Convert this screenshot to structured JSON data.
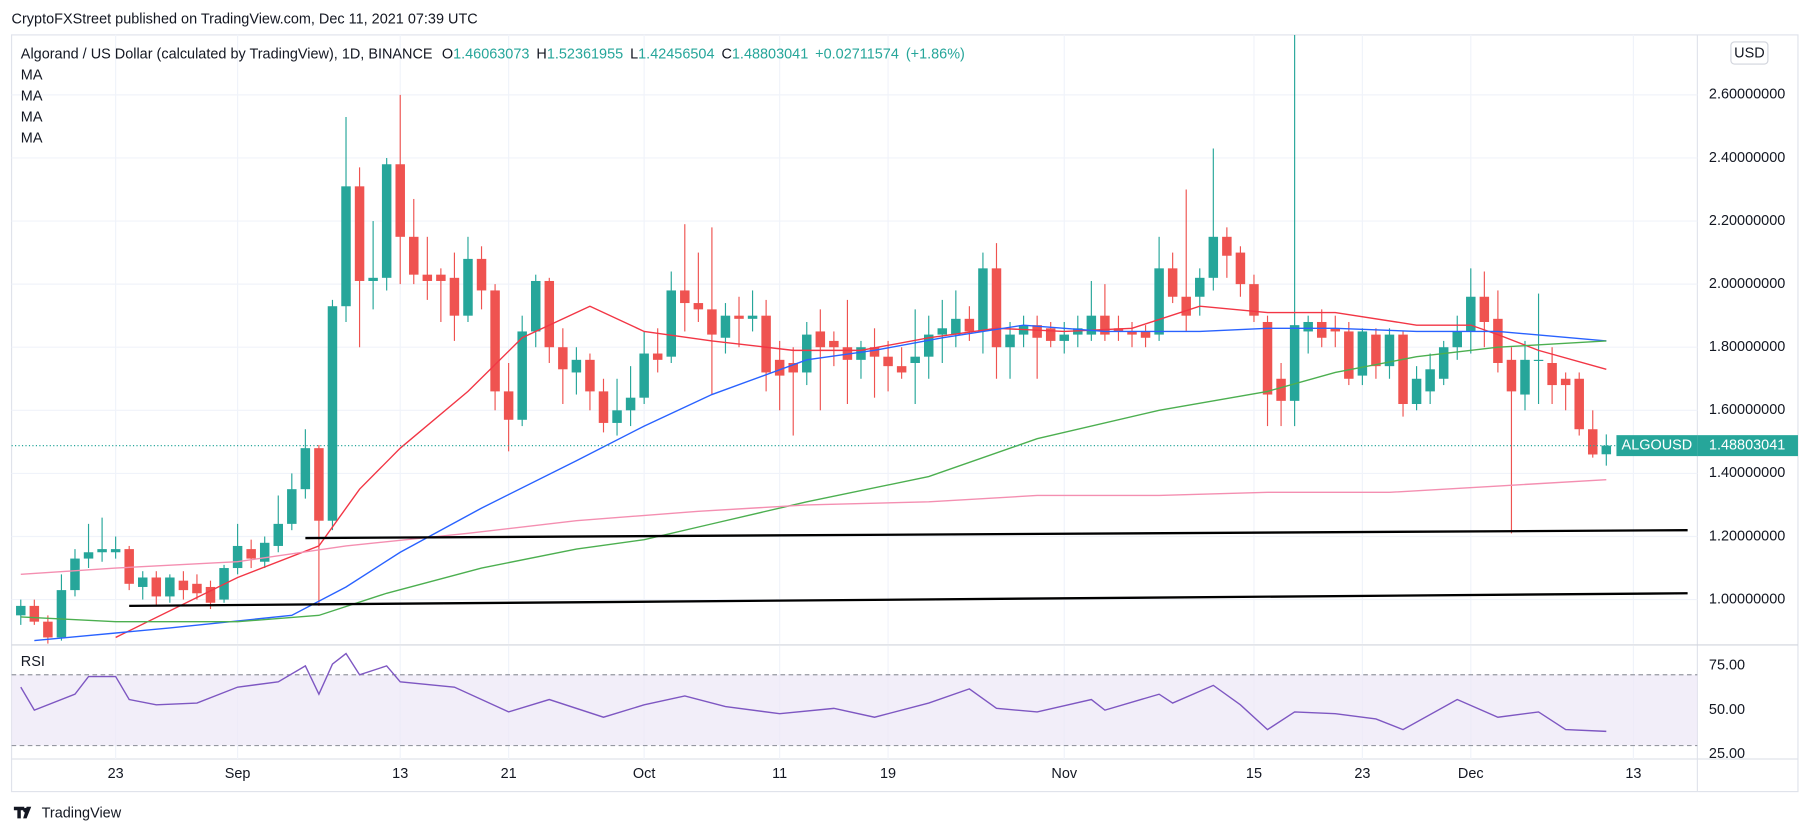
{
  "header": {
    "published": "CryptoFXStreet published on TradingView.com, Dec 11, 2021 07:39 UTC",
    "brand": "TradingView"
  },
  "chart_data": [
    {
      "type": "candlestick",
      "title": "Algorand / US Dollar (calculated by TradingView), 1D, BINANCE",
      "ohlc_labels": [
        "O",
        "H",
        "L",
        "C"
      ],
      "change": "+0.02711574",
      "change_pct": "(+1.86%)",
      "currency": "USD",
      "price_label": "ALGOUSD",
      "up_color": "#26a69a",
      "down_color": "#ef5350",
      "candles": [
        [
          0.95,
          1.0,
          0.92,
          0.98
        ],
        [
          0.98,
          1.0,
          0.92,
          0.93
        ],
        [
          0.93,
          0.95,
          0.86,
          0.88
        ],
        [
          0.88,
          1.08,
          0.87,
          1.03
        ],
        [
          1.03,
          1.16,
          1.01,
          1.13
        ],
        [
          1.13,
          1.24,
          1.1,
          1.15
        ],
        [
          1.15,
          1.26,
          1.12,
          1.16
        ],
        [
          1.15,
          1.2,
          1.13,
          1.16
        ],
        [
          1.16,
          1.17,
          1.03,
          1.05
        ],
        [
          1.04,
          1.09,
          1.0,
          1.07
        ],
        [
          1.07,
          1.09,
          0.98,
          1.01
        ],
        [
          1.01,
          1.08,
          0.99,
          1.07
        ],
        [
          1.06,
          1.09,
          1.0,
          1.03
        ],
        [
          1.05,
          1.08,
          1.0,
          1.02
        ],
        [
          1.04,
          1.06,
          0.97,
          0.99
        ],
        [
          1.0,
          1.11,
          0.99,
          1.1
        ],
        [
          1.1,
          1.24,
          1.08,
          1.17
        ],
        [
          1.16,
          1.19,
          1.1,
          1.13
        ],
        [
          1.12,
          1.2,
          1.1,
          1.18
        ],
        [
          1.17,
          1.33,
          1.15,
          1.24
        ],
        [
          1.24,
          1.4,
          1.22,
          1.35
        ],
        [
          1.35,
          1.54,
          1.32,
          1.48
        ],
        [
          1.48,
          1.49,
          0.98,
          1.25
        ],
        [
          1.25,
          1.95,
          1.22,
          1.93
        ],
        [
          1.93,
          2.53,
          1.88,
          2.31
        ],
        [
          2.31,
          2.37,
          1.8,
          2.01
        ],
        [
          2.01,
          2.2,
          1.92,
          2.02
        ],
        [
          2.02,
          2.4,
          1.98,
          2.38
        ],
        [
          2.38,
          2.6,
          2.0,
          2.15
        ],
        [
          2.15,
          2.27,
          2.0,
          2.03
        ],
        [
          2.03,
          2.15,
          1.95,
          2.01
        ],
        [
          2.03,
          2.05,
          1.88,
          2.01
        ],
        [
          2.02,
          2.1,
          1.82,
          1.9
        ],
        [
          1.9,
          2.15,
          1.88,
          2.08
        ],
        [
          2.08,
          2.12,
          1.92,
          1.98
        ],
        [
          1.98,
          2.0,
          1.6,
          1.66
        ],
        [
          1.66,
          1.75,
          1.47,
          1.57
        ],
        [
          1.57,
          1.9,
          1.55,
          1.85
        ],
        [
          1.85,
          2.03,
          1.8,
          2.01
        ],
        [
          2.01,
          2.02,
          1.75,
          1.8
        ],
        [
          1.8,
          1.86,
          1.62,
          1.73
        ],
        [
          1.72,
          1.8,
          1.65,
          1.76
        ],
        [
          1.76,
          1.78,
          1.6,
          1.66
        ],
        [
          1.66,
          1.7,
          1.53,
          1.56
        ],
        [
          1.56,
          1.7,
          1.52,
          1.6
        ],
        [
          1.6,
          1.74,
          1.55,
          1.64
        ],
        [
          1.64,
          1.85,
          1.62,
          1.78
        ],
        [
          1.78,
          1.86,
          1.72,
          1.76
        ],
        [
          1.77,
          2.04,
          1.75,
          1.98
        ],
        [
          1.98,
          2.19,
          1.85,
          1.94
        ],
        [
          1.94,
          2.1,
          1.88,
          1.92
        ],
        [
          1.92,
          2.18,
          1.65,
          1.84
        ],
        [
          1.83,
          1.94,
          1.78,
          1.9
        ],
        [
          1.9,
          1.96,
          1.8,
          1.89
        ],
        [
          1.89,
          1.98,
          1.85,
          1.9
        ],
        [
          1.9,
          1.95,
          1.66,
          1.72
        ],
        [
          1.76,
          1.82,
          1.6,
          1.71
        ],
        [
          1.75,
          1.8,
          1.52,
          1.72
        ],
        [
          1.72,
          1.88,
          1.68,
          1.84
        ],
        [
          1.85,
          1.92,
          1.6,
          1.8
        ],
        [
          1.82,
          1.85,
          1.74,
          1.8
        ],
        [
          1.8,
          1.95,
          1.62,
          1.76
        ],
        [
          1.76,
          1.82,
          1.7,
          1.8
        ],
        [
          1.8,
          1.86,
          1.64,
          1.77
        ],
        [
          1.77,
          1.82,
          1.66,
          1.74
        ],
        [
          1.74,
          1.8,
          1.7,
          1.72
        ],
        [
          1.75,
          1.92,
          1.62,
          1.77
        ],
        [
          1.77,
          1.9,
          1.7,
          1.84
        ],
        [
          1.84,
          1.95,
          1.75,
          1.86
        ],
        [
          1.84,
          1.98,
          1.8,
          1.89
        ],
        [
          1.89,
          1.93,
          1.82,
          1.85
        ],
        [
          1.85,
          2.1,
          1.78,
          2.05
        ],
        [
          2.05,
          2.13,
          1.7,
          1.8
        ],
        [
          1.8,
          1.88,
          1.7,
          1.84
        ],
        [
          1.84,
          1.9,
          1.8,
          1.87
        ],
        [
          1.87,
          1.9,
          1.7,
          1.83
        ],
        [
          1.86,
          1.88,
          1.8,
          1.82
        ],
        [
          1.82,
          1.88,
          1.78,
          1.84
        ],
        [
          1.84,
          1.9,
          1.8,
          1.86
        ],
        [
          1.84,
          2.01,
          1.82,
          1.9
        ],
        [
          1.9,
          2.0,
          1.82,
          1.84
        ],
        [
          1.86,
          1.9,
          1.82,
          1.85
        ],
        [
          1.85,
          1.88,
          1.8,
          1.84
        ],
        [
          1.85,
          1.87,
          1.8,
          1.83
        ],
        [
          1.84,
          2.15,
          1.82,
          2.05
        ],
        [
          2.05,
          2.1,
          1.94,
          1.96
        ],
        [
          1.96,
          2.3,
          1.85,
          1.9
        ],
        [
          1.96,
          2.05,
          1.9,
          2.02
        ],
        [
          2.02,
          2.43,
          1.98,
          2.15
        ],
        [
          2.15,
          2.18,
          2.02,
          2.09
        ],
        [
          2.1,
          2.12,
          1.96,
          2.0
        ],
        [
          2.0,
          2.03,
          1.88,
          1.9
        ],
        [
          1.88,
          1.9,
          1.55,
          1.65
        ],
        [
          1.7,
          1.75,
          1.55,
          1.63
        ],
        [
          1.63,
          2.79,
          1.55,
          1.87
        ],
        [
          1.85,
          1.9,
          1.78,
          1.88
        ],
        [
          1.88,
          1.92,
          1.8,
          1.83
        ],
        [
          1.86,
          1.9,
          1.8,
          1.85
        ],
        [
          1.85,
          1.88,
          1.68,
          1.7
        ],
        [
          1.71,
          1.86,
          1.68,
          1.85
        ],
        [
          1.84,
          1.86,
          1.7,
          1.74
        ],
        [
          1.74,
          1.86,
          1.7,
          1.84
        ],
        [
          1.84,
          1.85,
          1.58,
          1.62
        ],
        [
          1.62,
          1.74,
          1.6,
          1.7
        ],
        [
          1.66,
          1.78,
          1.62,
          1.73
        ],
        [
          1.7,
          1.82,
          1.68,
          1.8
        ],
        [
          1.8,
          1.9,
          1.76,
          1.85
        ],
        [
          1.85,
          2.05,
          1.78,
          1.96
        ],
        [
          1.96,
          2.04,
          1.8,
          1.88
        ],
        [
          1.89,
          1.98,
          1.72,
          1.75
        ],
        [
          1.76,
          1.8,
          1.21,
          1.66
        ],
        [
          1.65,
          1.82,
          1.6,
          1.76
        ],
        [
          1.76,
          1.97,
          1.62,
          1.76
        ],
        [
          1.75,
          1.8,
          1.62,
          1.68
        ],
        [
          1.7,
          1.72,
          1.6,
          1.68
        ],
        [
          1.7,
          1.72,
          1.52,
          1.54
        ],
        [
          1.54,
          1.6,
          1.45,
          1.46
        ],
        [
          1.46063073,
          1.52361955,
          1.42456504,
          1.48803041
        ]
      ],
      "moving_averages": [
        {
          "name": "MA",
          "color": "#f23645",
          "x": [
            7,
            16,
            22,
            25,
            28,
            33,
            37,
            42,
            46,
            51,
            57,
            62,
            67,
            72,
            77,
            82,
            87,
            92,
            97,
            103,
            107,
            109,
            112,
            117
          ],
          "values": [
            0.88,
            1.07,
            1.17,
            1.35,
            1.48,
            1.66,
            1.83,
            1.93,
            1.85,
            1.82,
            1.79,
            1.79,
            1.83,
            1.86,
            1.85,
            1.86,
            1.93,
            1.91,
            1.91,
            1.87,
            1.87,
            1.84,
            1.79,
            1.73
          ]
        },
        {
          "name": "MA",
          "color": "#2962ff",
          "x": [
            1,
            11,
            20,
            24,
            28,
            34,
            41,
            46,
            51,
            58,
            63,
            68,
            74,
            80,
            87,
            92,
            97,
            103,
            109,
            117
          ],
          "values": [
            0.87,
            0.91,
            0.95,
            1.04,
            1.15,
            1.29,
            1.44,
            1.55,
            1.65,
            1.76,
            1.79,
            1.83,
            1.87,
            1.85,
            1.85,
            1.86,
            1.86,
            1.85,
            1.85,
            1.82
          ]
        },
        {
          "name": "MA",
          "color": "#4caf50",
          "x": [
            0,
            7,
            16,
            22,
            27,
            34,
            41,
            46,
            51,
            58,
            67,
            75,
            84,
            92,
            97,
            103,
            109,
            117
          ],
          "values": [
            0.945,
            0.93,
            0.93,
            0.95,
            1.02,
            1.1,
            1.16,
            1.19,
            1.24,
            1.31,
            1.39,
            1.51,
            1.6,
            1.66,
            1.72,
            1.77,
            1.8,
            1.82
          ]
        },
        {
          "name": "MA",
          "color": "#f48fb1",
          "x": [
            0,
            7,
            16,
            24,
            33,
            41,
            50,
            58,
            67,
            75,
            84,
            92,
            101,
            109,
            117
          ],
          "values": [
            1.08,
            1.1,
            1.12,
            1.17,
            1.21,
            1.25,
            1.28,
            1.3,
            1.31,
            1.33,
            1.33,
            1.34,
            1.34,
            1.36,
            1.38
          ]
        }
      ],
      "trendlines": [
        {
          "color": "#000000",
          "x": [
            8,
            123
          ],
          "values": [
            0.98,
            1.02
          ]
        },
        {
          "color": "#000000",
          "x": [
            21,
            123
          ],
          "values": [
            1.195,
            1.22
          ]
        }
      ],
      "xlim": [
        -0.68,
        123.72
      ],
      "xticks": [
        {
          "value": 7,
          "label": "23"
        },
        {
          "value": 16,
          "label": "Sep"
        },
        {
          "value": 28,
          "label": "13"
        },
        {
          "value": 36,
          "label": "21"
        },
        {
          "value": 46,
          "label": "Oct"
        },
        {
          "value": 56,
          "label": "11"
        },
        {
          "value": 64,
          "label": "19"
        },
        {
          "value": 77,
          "label": "Nov"
        },
        {
          "value": 91,
          "label": "15"
        },
        {
          "value": 99,
          "label": "23"
        },
        {
          "value": 107,
          "label": "Dec"
        },
        {
          "value": 119,
          "label": "13"
        }
      ],
      "ylim": [
        0.86,
        2.79
      ],
      "yticks": [
        {
          "value": 1.0,
          "label": "1.00000000"
        },
        {
          "value": 1.2,
          "label": "1.20000000"
        },
        {
          "value": 1.4,
          "label": "1.40000000"
        },
        {
          "value": 1.6,
          "label": "1.60000000"
        },
        {
          "value": 1.8,
          "label": "1.80000000"
        },
        {
          "value": 2.0,
          "label": "2.00000000"
        },
        {
          "value": 2.2,
          "label": "2.20000000"
        },
        {
          "value": 2.4,
          "label": "2.40000000"
        },
        {
          "value": 2.6,
          "label": "2.60000000"
        }
      ],
      "grid": true
    },
    {
      "type": "line",
      "title": "RSI",
      "color": "#7e57c2",
      "band": [
        30,
        70
      ],
      "band_color": "#ede7f6",
      "x": [
        0,
        1,
        4,
        5,
        7,
        8,
        10,
        13,
        16,
        19,
        21,
        22,
        23,
        24,
        25,
        27,
        28,
        32,
        34,
        36,
        39,
        43,
        46,
        49,
        52,
        56,
        60,
        63,
        67,
        70,
        72,
        75,
        79,
        80,
        84,
        85,
        88,
        90,
        92,
        94,
        97,
        100,
        102,
        106,
        109,
        112,
        114,
        117
      ],
      "values": [
        63,
        50,
        59,
        69,
        69,
        56,
        53,
        54,
        63,
        66,
        75,
        59,
        76,
        82,
        70,
        75,
        66,
        63,
        56,
        49,
        56,
        46,
        53,
        58,
        52,
        48,
        51,
        46,
        54,
        62,
        51,
        49,
        56,
        50,
        59,
        54,
        64,
        53,
        39,
        49,
        48,
        45,
        39,
        56,
        46,
        49,
        39,
        38
      ],
      "ylim": [
        22.4,
        86.2
      ],
      "yticks": [
        {
          "value": 25,
          "label": "25.00"
        },
        {
          "value": 50,
          "label": "50.00"
        },
        {
          "value": 75,
          "label": "75.00"
        }
      ]
    }
  ]
}
